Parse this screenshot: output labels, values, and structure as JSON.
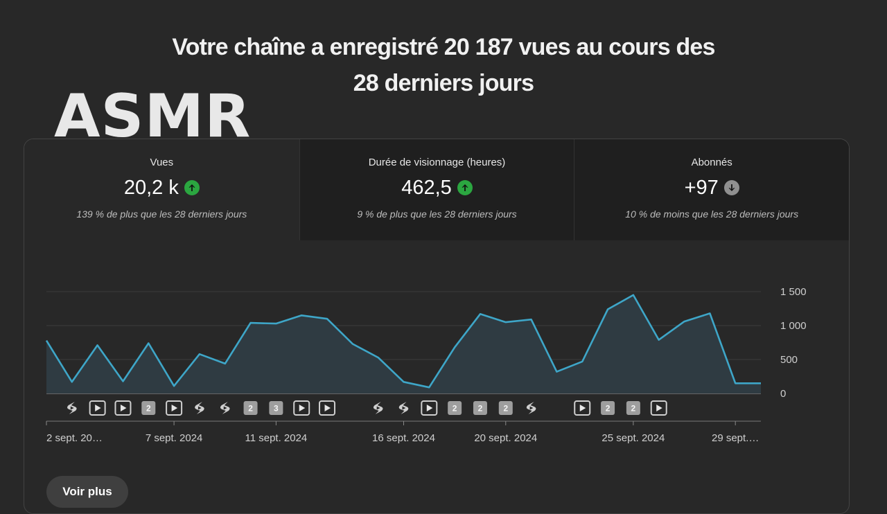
{
  "headline": {
    "line1": "Votre chaîne a enregistré 20 187 vues au cours des",
    "line2": "28 derniers jours"
  },
  "overlay_word": "ASMR",
  "colors": {
    "background": "#282828",
    "line": "#3ea6c8",
    "up": "#2ba640",
    "down": "#909090"
  },
  "tabs": [
    {
      "label": "Vues",
      "value": "20,2 k",
      "trend": "up",
      "icon": "arrow-up-icon",
      "compare": "139 % de plus que les 28 derniers jours"
    },
    {
      "label": "Durée de visionnage (heures)",
      "value": "462,5",
      "trend": "up",
      "icon": "arrow-up-icon",
      "compare": "9 % de plus que les 28 derniers jours"
    },
    {
      "label": "Abonnés",
      "value": "+97",
      "trend": "down",
      "icon": "arrow-down-icon",
      "compare": "10 % de moins que les 28 derniers jours"
    }
  ],
  "chart_data": {
    "type": "area",
    "x": [
      "2 sept.",
      "3 sept.",
      "4 sept.",
      "5 sept.",
      "6 sept.",
      "7 sept.",
      "8 sept.",
      "9 sept.",
      "10 sept.",
      "11 sept.",
      "12 sept.",
      "13 sept.",
      "14 sept.",
      "15 sept.",
      "16 sept.",
      "17 sept.",
      "18 sept.",
      "19 sept.",
      "20 sept.",
      "21 sept.",
      "22 sept.",
      "23 sept.",
      "24 sept.",
      "25 sept.",
      "26 sept.",
      "27 sept.",
      "28 sept.",
      "29 sept.",
      "30 sept."
    ],
    "values": [
      780,
      170,
      710,
      180,
      740,
      110,
      580,
      440,
      1040,
      1030,
      1150,
      1100,
      730,
      530,
      170,
      90,
      680,
      1170,
      1050,
      1090,
      320,
      470,
      1240,
      1450,
      790,
      1060,
      1180,
      150,
      150
    ],
    "ylim": [
      0,
      1500
    ],
    "y_ticks": [
      "0",
      "500",
      "1 000",
      "1 500"
    ],
    "x_tick_labels": [
      {
        "index": 0,
        "label": "2 sept. 20…"
      },
      {
        "index": 5,
        "label": "7 sept. 2024"
      },
      {
        "index": 9,
        "label": "11 sept. 2024"
      },
      {
        "index": 14,
        "label": "16 sept. 2024"
      },
      {
        "index": 18,
        "label": "20 sept. 2024"
      },
      {
        "index": 23,
        "label": "25 sept. 2024"
      },
      {
        "index": 27,
        "label": "29 sept.…"
      }
    ],
    "grid": true,
    "publication_markers": [
      {
        "index": 1,
        "icon": "shorts-icon",
        "label": ""
      },
      {
        "index": 2,
        "icon": "play-icon",
        "label": ""
      },
      {
        "index": 3,
        "icon": "play-icon",
        "label": ""
      },
      {
        "index": 4,
        "icon": "count-badge",
        "label": "2"
      },
      {
        "index": 5,
        "icon": "play-icon",
        "label": ""
      },
      {
        "index": 6,
        "icon": "shorts-icon",
        "label": ""
      },
      {
        "index": 7,
        "icon": "shorts-icon",
        "label": ""
      },
      {
        "index": 8,
        "icon": "count-badge",
        "label": "2"
      },
      {
        "index": 9,
        "icon": "count-badge",
        "label": "3"
      },
      {
        "index": 10,
        "icon": "play-icon",
        "label": ""
      },
      {
        "index": 11,
        "icon": "play-icon",
        "label": ""
      },
      {
        "index": 13,
        "icon": "shorts-icon",
        "label": ""
      },
      {
        "index": 14,
        "icon": "shorts-icon",
        "label": ""
      },
      {
        "index": 15,
        "icon": "play-icon",
        "label": ""
      },
      {
        "index": 16,
        "icon": "count-badge",
        "label": "2"
      },
      {
        "index": 17,
        "icon": "count-badge",
        "label": "2"
      },
      {
        "index": 18,
        "icon": "count-badge",
        "label": "2"
      },
      {
        "index": 19,
        "icon": "shorts-icon",
        "label": ""
      },
      {
        "index": 21,
        "icon": "play-icon",
        "label": ""
      },
      {
        "index": 22,
        "icon": "count-badge",
        "label": "2"
      },
      {
        "index": 23,
        "icon": "count-badge",
        "label": "2"
      },
      {
        "index": 24,
        "icon": "play-icon",
        "label": ""
      }
    ]
  },
  "voir_plus_label": "Voir plus"
}
